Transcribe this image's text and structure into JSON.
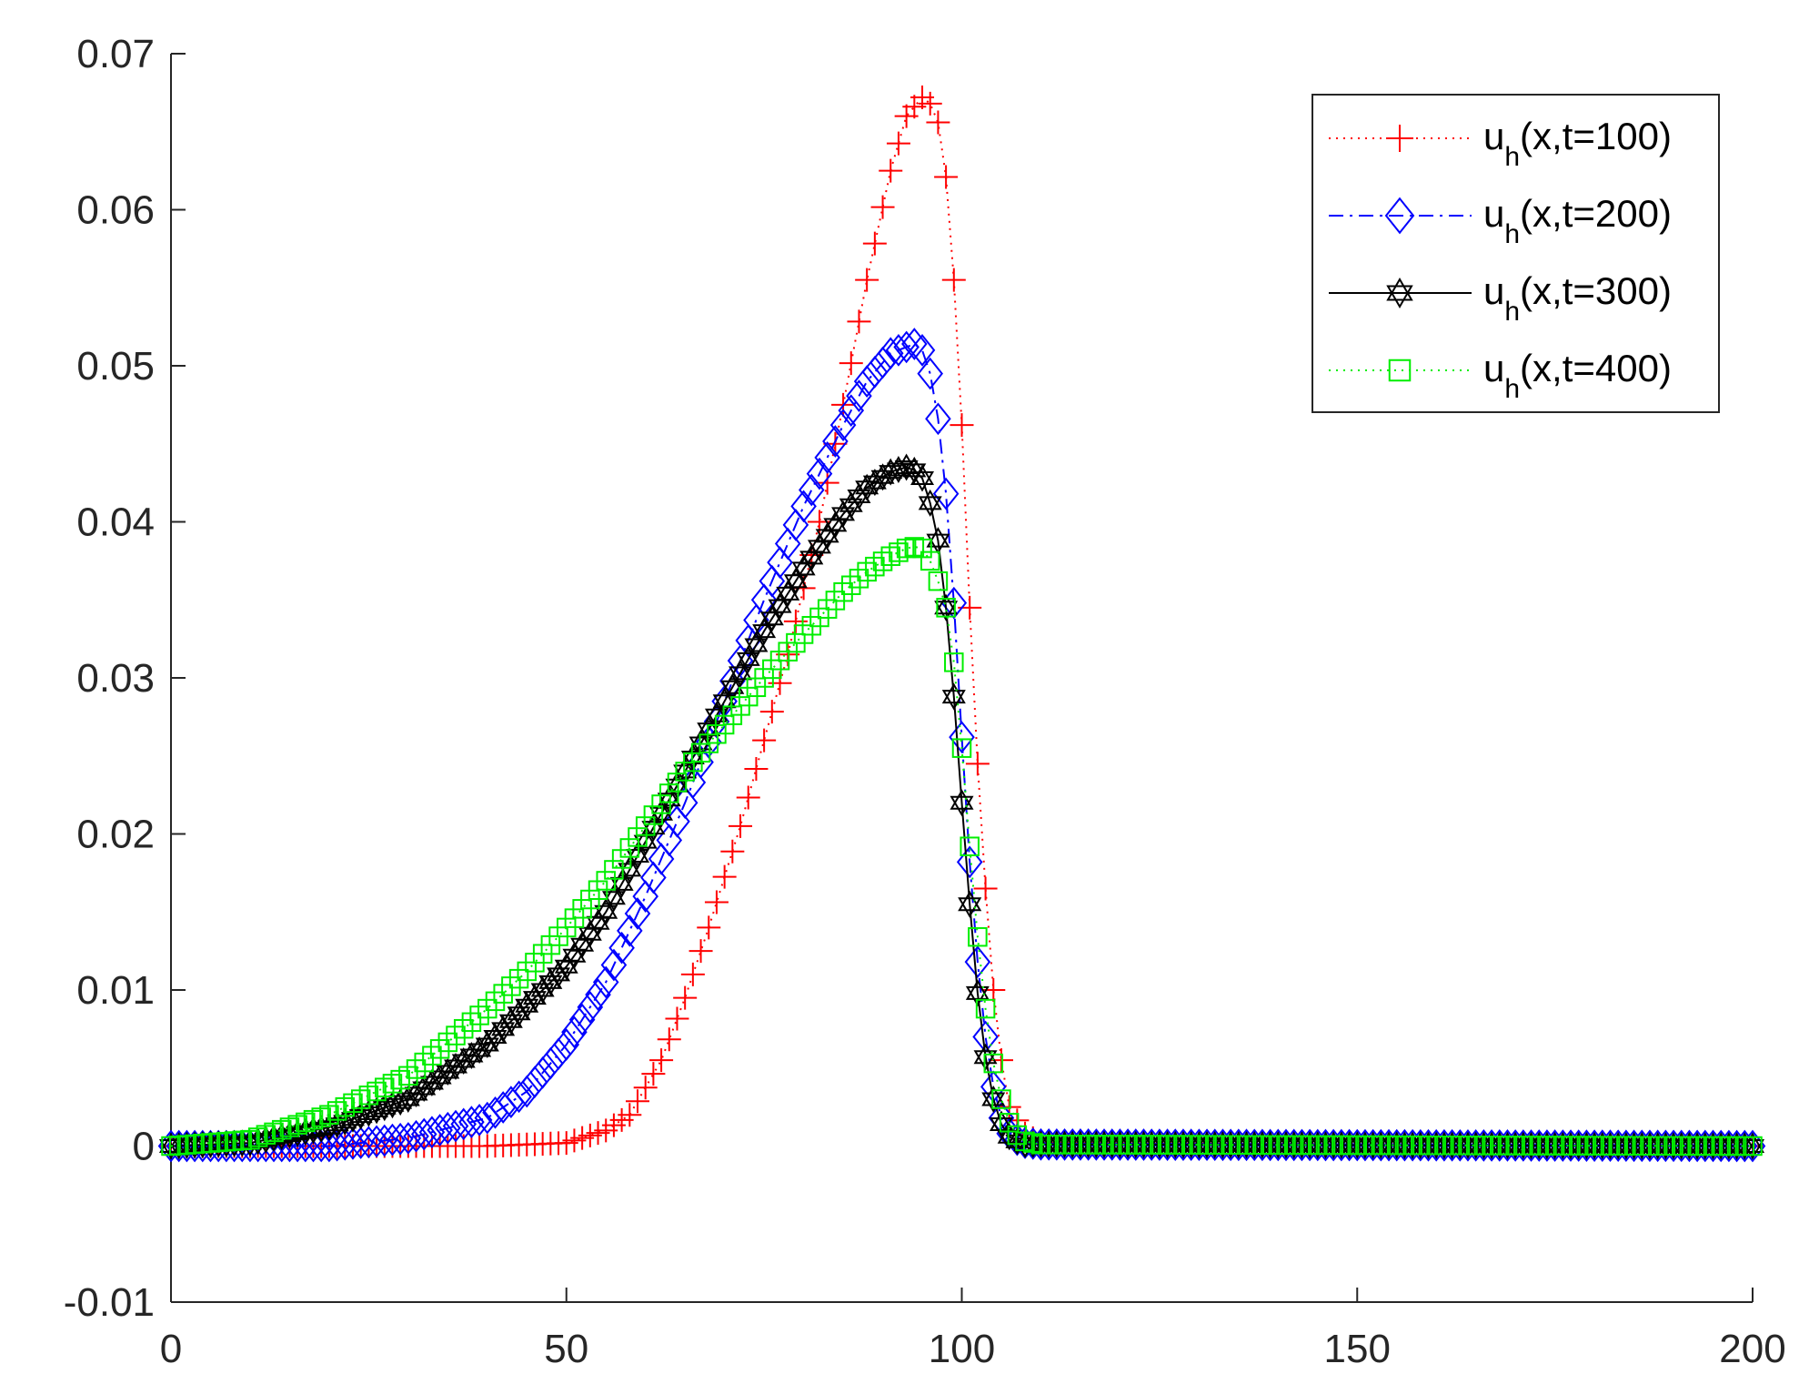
{
  "chart_data": {
    "type": "line",
    "title": "",
    "xlabel": "",
    "ylabel": "",
    "xlim": [
      0,
      200
    ],
    "ylim": [
      -0.01,
      0.07
    ],
    "xticks": [
      0,
      50,
      100,
      150,
      200
    ],
    "xtick_labels": [
      "0",
      "50",
      "100",
      "150",
      "200"
    ],
    "yticks": [
      -0.01,
      0,
      0.01,
      0.02,
      0.03,
      0.04,
      0.05,
      0.06,
      0.07
    ],
    "ytick_labels": [
      "-0.01",
      "0",
      "0.01",
      "0.02",
      "0.03",
      "0.04",
      "0.05",
      "0.06",
      "0.07"
    ],
    "grid": false,
    "legend_position": "top-right",
    "x_step": 1,
    "series": [
      {
        "name_main": "u",
        "name_sub": "h",
        "name_rest": "(x,t=100)",
        "color": "#ff0000",
        "line": "dotted",
        "marker": "plus",
        "profile": {
          "x": [
            0,
            40,
            50,
            55,
            58,
            62,
            65,
            68,
            72,
            75,
            78,
            82,
            85,
            88,
            91,
            93,
            95,
            96,
            97,
            98,
            99,
            100,
            101,
            102,
            103,
            104,
            105,
            106,
            108,
            110,
            200
          ],
          "y": [
            0,
            0,
            0.0002,
            0.001,
            0.002,
            0.0055,
            0.0095,
            0.014,
            0.0205,
            0.026,
            0.0315,
            0.04,
            0.0475,
            0.0555,
            0.0625,
            0.066,
            0.0672,
            0.0668,
            0.0656,
            0.0621,
            0.0555,
            0.0462,
            0.0345,
            0.0245,
            0.0165,
            0.01,
            0.0055,
            0.0025,
            0.0008,
            0.0002,
            0
          ]
        }
      },
      {
        "name_main": "u",
        "name_sub": "h",
        "name_rest": "(x,t=200)",
        "color": "#0000ff",
        "line": "dashdot",
        "marker": "diamond",
        "profile": {
          "x": [
            0,
            20,
            30,
            40,
            45,
            50,
            55,
            60,
            65,
            70,
            75,
            80,
            85,
            88,
            91,
            93,
            94,
            95,
            96,
            97,
            98,
            99,
            100,
            101,
            102,
            103,
            104,
            105,
            106,
            107,
            108,
            110,
            200
          ],
          "y": [
            0,
            0,
            0.0005,
            0.0018,
            0.0035,
            0.0065,
            0.0105,
            0.016,
            0.022,
            0.0285,
            0.035,
            0.041,
            0.0462,
            0.049,
            0.0508,
            0.0512,
            0.0514,
            0.051,
            0.0495,
            0.0466,
            0.0418,
            0.0348,
            0.0262,
            0.0182,
            0.0118,
            0.007,
            0.0038,
            0.0018,
            0.0008,
            0.0004,
            0.0002,
            0.0001,
            0
          ]
        }
      },
      {
        "name_main": "u",
        "name_sub": "h",
        "name_rest": "(x,t=300)",
        "color": "#000000",
        "line": "solid",
        "marker": "hexagram",
        "profile": {
          "x": [
            0,
            10,
            20,
            30,
            40,
            50,
            55,
            60,
            65,
            70,
            75,
            80,
            85,
            88,
            91,
            93,
            94,
            95,
            96,
            97,
            98,
            99,
            100,
            101,
            102,
            103,
            104,
            105,
            106,
            107,
            108,
            110,
            200
          ],
          "y": [
            0,
            0.0002,
            0.0012,
            0.003,
            0.0065,
            0.0115,
            0.015,
            0.0195,
            0.024,
            0.0285,
            0.033,
            0.037,
            0.0405,
            0.0422,
            0.0432,
            0.0435,
            0.0433,
            0.0428,
            0.0412,
            0.0388,
            0.0345,
            0.0288,
            0.022,
            0.0155,
            0.0098,
            0.0057,
            0.003,
            0.0014,
            0.0006,
            0.0003,
            0.0001,
            0.0001,
            0
          ]
        }
      },
      {
        "name_main": "u",
        "name_sub": "h",
        "name_rest": "(x,t=400)",
        "color": "#00ee00",
        "line": "dotted",
        "marker": "square",
        "profile": {
          "x": [
            0,
            10,
            20,
            30,
            40,
            45,
            50,
            55,
            60,
            65,
            70,
            75,
            80,
            85,
            88,
            91,
            93,
            94,
            95,
            96,
            97,
            98,
            99,
            100,
            101,
            102,
            103,
            104,
            105,
            106,
            107,
            108,
            110,
            200
          ],
          "y": [
            0,
            0.0004,
            0.002,
            0.0045,
            0.0088,
            0.0112,
            0.014,
            0.017,
            0.0205,
            0.024,
            0.027,
            0.03,
            0.0328,
            0.0355,
            0.0368,
            0.0378,
            0.0383,
            0.0384,
            0.0383,
            0.0375,
            0.0362,
            0.0345,
            0.031,
            0.0255,
            0.0192,
            0.0134,
            0.0088,
            0.0053,
            0.003,
            0.0015,
            0.0007,
            0.0003,
            0.0001,
            0
          ]
        }
      }
    ]
  }
}
